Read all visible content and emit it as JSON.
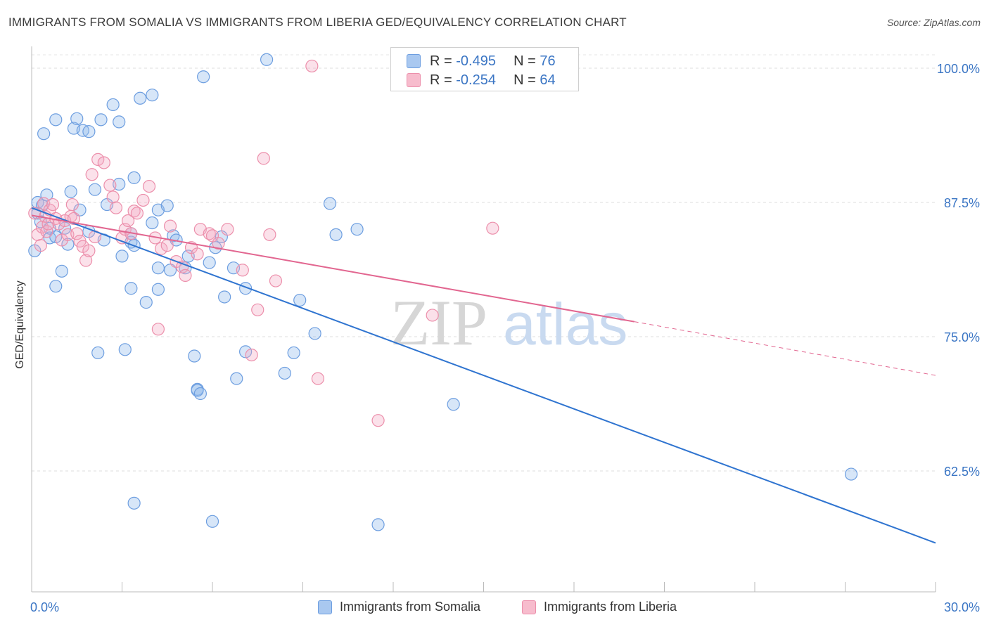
{
  "title": "IMMIGRANTS FROM SOMALIA VS IMMIGRANTS FROM LIBERIA GED/EQUIVALENCY CORRELATION CHART",
  "source": "Source: ZipAtlas.com",
  "watermark": {
    "zip": "ZIP",
    "atlas": "atlas"
  },
  "legend": {
    "rows": [
      {
        "r_label": "R = ",
        "r_value": "-0.495",
        "n_label": "N = ",
        "n_value": "76",
        "color": "#a9c8f0",
        "border": "#6d9ee0"
      },
      {
        "r_label": "R = ",
        "r_value": "-0.254",
        "n_label": "N = ",
        "n_value": "64",
        "color": "#f7bccd",
        "border": "#ec8fab"
      }
    ]
  },
  "bottom_legend": [
    "Immigrants from Somalia",
    "Immigrants from Liberia"
  ],
  "chart_data": {
    "type": "scatter",
    "title": "IMMIGRANTS FROM SOMALIA VS IMMIGRANTS FROM LIBERIA GED/EQUIVALENCY CORRELATION CHART",
    "xlabel": "",
    "ylabel": "GED/Equivalency",
    "xlim": [
      0,
      30
    ],
    "ylim": [
      50,
      103
    ],
    "x_tick_labels": [
      {
        "x": 0,
        "label": "0.0%"
      },
      {
        "x": 30,
        "label": "30.0%"
      }
    ],
    "y_tick_labels": [
      {
        "y": 100,
        "label": "100.0%"
      },
      {
        "y": 87.5,
        "label": "87.5%"
      },
      {
        "y": 75,
        "label": "75.0%"
      },
      {
        "y": 62.5,
        "label": "62.5%"
      }
    ],
    "grid": "horizontal dashed",
    "legend_position": "top-center",
    "colors": {
      "somalia": "#5b93dc",
      "liberia": "#ee8fad",
      "somalia_line": "#2f74d0",
      "liberia_line": "#e26690",
      "tick_label": "#3a75c4"
    },
    "series": [
      {
        "name": "Immigrants from Somalia",
        "points": [
          [
            0.2,
            87.5
          ],
          [
            0.2,
            86.5
          ],
          [
            0.35,
            87.2
          ],
          [
            0.3,
            85.7
          ],
          [
            0.4,
            93.9
          ],
          [
            0.5,
            88.2
          ],
          [
            0.6,
            84.2
          ],
          [
            0.6,
            85.1
          ],
          [
            0.8,
            84.3
          ],
          [
            0.8,
            95.2
          ],
          [
            1.0,
            81.1
          ],
          [
            1.1,
            85.1
          ],
          [
            1.2,
            83.6
          ],
          [
            1.3,
            88.5
          ],
          [
            1.4,
            94.4
          ],
          [
            1.5,
            95.3
          ],
          [
            1.6,
            86.8
          ],
          [
            1.7,
            94.2
          ],
          [
            1.9,
            94.1
          ],
          [
            2.3,
            95.2
          ],
          [
            1.9,
            84.8
          ],
          [
            2.1,
            88.7
          ],
          [
            2.4,
            84.0
          ],
          [
            2.5,
            87.3
          ],
          [
            2.7,
            96.6
          ],
          [
            2.9,
            95.0
          ],
          [
            2.9,
            89.2
          ],
          [
            3.0,
            82.5
          ],
          [
            3.3,
            83.8
          ],
          [
            3.4,
            89.8
          ],
          [
            3.4,
            83.5
          ],
          [
            3.8,
            78.2
          ],
          [
            3.3,
            84.6
          ],
          [
            3.3,
            79.5
          ],
          [
            3.6,
            97.2
          ],
          [
            4.0,
            85.6
          ],
          [
            4.2,
            79.4
          ],
          [
            4.2,
            86.8
          ],
          [
            4.5,
            87.2
          ],
          [
            4.0,
            97.5
          ],
          [
            0.8,
            79.7
          ],
          [
            4.2,
            81.4
          ],
          [
            4.6,
            81.2
          ],
          [
            4.7,
            84.4
          ],
          [
            4.8,
            84.0
          ],
          [
            5.1,
            81.4
          ],
          [
            5.2,
            82.5
          ],
          [
            5.4,
            73.2
          ],
          [
            5.5,
            70.1
          ],
          [
            5.5,
            70.0
          ],
          [
            5.7,
            99.2
          ],
          [
            5.9,
            81.9
          ],
          [
            6.1,
            83.3
          ],
          [
            6.3,
            84.3
          ],
          [
            6.4,
            78.7
          ],
          [
            6.7,
            81.4
          ],
          [
            7.1,
            79.5
          ],
          [
            7.8,
            100.8
          ],
          [
            6.8,
            71.1
          ],
          [
            2.2,
            73.5
          ],
          [
            3.1,
            73.8
          ],
          [
            7.1,
            73.6
          ],
          [
            5.6,
            69.7
          ],
          [
            8.7,
            73.5
          ],
          [
            8.4,
            71.6
          ],
          [
            8.9,
            78.4
          ],
          [
            9.4,
            75.3
          ],
          [
            9.9,
            87.4
          ],
          [
            10.1,
            84.5
          ],
          [
            10.8,
            85.0
          ],
          [
            14.0,
            68.7
          ],
          [
            27.2,
            62.2
          ],
          [
            3.4,
            59.5
          ],
          [
            6.0,
            57.8
          ],
          [
            11.5,
            57.5
          ],
          [
            0.1,
            83.0
          ]
        ]
      },
      {
        "name": "Immigrants from Liberia",
        "points": [
          [
            0.1,
            86.5
          ],
          [
            0.2,
            84.5
          ],
          [
            0.3,
            83.5
          ],
          [
            0.35,
            85.2
          ],
          [
            0.4,
            87.4
          ],
          [
            0.45,
            86.2
          ],
          [
            0.5,
            84.8
          ],
          [
            0.55,
            85.5
          ],
          [
            0.6,
            86.8
          ],
          [
            0.7,
            87.3
          ],
          [
            0.8,
            86.0
          ],
          [
            0.9,
            85.5
          ],
          [
            1.0,
            84.0
          ],
          [
            1.1,
            85.8
          ],
          [
            1.2,
            84.5
          ],
          [
            1.3,
            86.2
          ],
          [
            1.35,
            87.3
          ],
          [
            1.4,
            86.0
          ],
          [
            1.5,
            84.6
          ],
          [
            1.6,
            83.9
          ],
          [
            1.7,
            83.4
          ],
          [
            1.8,
            82.1
          ],
          [
            1.9,
            83.0
          ],
          [
            2.0,
            90.1
          ],
          [
            2.1,
            84.3
          ],
          [
            2.2,
            91.5
          ],
          [
            2.4,
            91.2
          ],
          [
            2.6,
            89.1
          ],
          [
            2.7,
            88.0
          ],
          [
            2.8,
            87.0
          ],
          [
            3.0,
            84.2
          ],
          [
            3.1,
            85.0
          ],
          [
            3.2,
            85.8
          ],
          [
            3.3,
            84.6
          ],
          [
            3.4,
            86.7
          ],
          [
            3.5,
            86.5
          ],
          [
            3.7,
            87.7
          ],
          [
            3.9,
            89.0
          ],
          [
            4.1,
            84.2
          ],
          [
            4.3,
            83.2
          ],
          [
            4.5,
            83.5
          ],
          [
            4.6,
            85.3
          ],
          [
            4.8,
            82.0
          ],
          [
            5.0,
            81.5
          ],
          [
            5.1,
            80.7
          ],
          [
            5.3,
            83.3
          ],
          [
            5.5,
            82.7
          ],
          [
            5.6,
            85.0
          ],
          [
            5.9,
            84.6
          ],
          [
            6.0,
            84.4
          ],
          [
            6.2,
            83.7
          ],
          [
            6.5,
            85.0
          ],
          [
            7.0,
            81.2
          ],
          [
            7.3,
            73.3
          ],
          [
            7.5,
            77.5
          ],
          [
            7.7,
            91.6
          ],
          [
            7.9,
            84.5
          ],
          [
            8.1,
            80.2
          ],
          [
            9.3,
            100.2
          ],
          [
            9.5,
            71.1
          ],
          [
            11.5,
            67.2
          ],
          [
            13.3,
            77.0
          ],
          [
            15.3,
            85.1
          ],
          [
            4.2,
            75.7
          ]
        ]
      }
    ],
    "trendlines": [
      {
        "series": "Immigrants from Somalia",
        "x": [
          0,
          30
        ],
        "y": [
          87.0,
          55.8
        ],
        "style": "solid"
      },
      {
        "series": "Immigrants from Liberia",
        "x": [
          0,
          20
        ],
        "y": [
          86.3,
          76.4
        ],
        "style": "solid"
      },
      {
        "series": "Immigrants from Liberia",
        "x": [
          20,
          30
        ],
        "y": [
          76.4,
          71.4
        ],
        "style": "dashed"
      }
    ]
  }
}
